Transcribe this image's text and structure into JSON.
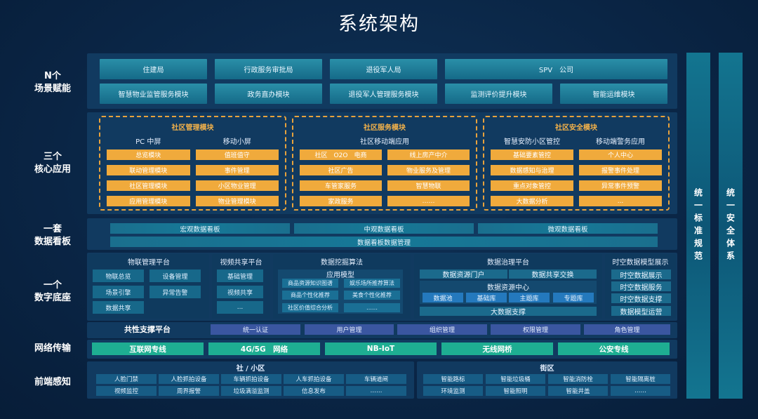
{
  "title": "系统架构",
  "left_labels": [
    "N个\n场景赋能",
    "三个\n核心应用",
    "一套\n数据看板",
    "一个\n数字底座",
    "网络传输",
    "前端感知"
  ],
  "scenario": {
    "row1": [
      "住建局",
      "行政服务审批局",
      "退役军人局",
      "SPV　公司"
    ],
    "row2": [
      "智慧物业监管服务模块",
      "政务直办模块",
      "退役军人管理服务模块",
      "监测评价提升模块",
      "智能运维模块"
    ]
  },
  "core_apps": [
    {
      "title": "社区管理模块",
      "subtitles": [
        "PC 中屏",
        "移动小屏"
      ],
      "left": [
        "总览模块",
        "联动管理模块",
        "社区管理模块",
        "应用管理模块"
      ],
      "right": [
        "值班值守",
        "事件管理",
        "小区物业管理",
        "物业管理模块"
      ]
    },
    {
      "title": "社区服务模块",
      "subtitles": [
        "社区移动端应用"
      ],
      "left": [
        "社区　O2O　电商",
        "社区广告",
        "车管家服务",
        "家政服务"
      ],
      "right": [
        "线上房产中介",
        "物业服务及管理",
        "智慧物联",
        "……"
      ]
    },
    {
      "title": "社区安全模块",
      "subtitles": [
        "智慧安防小区管控",
        "移动端警务应用"
      ],
      "left": [
        "基础要素管控",
        "数据感知与治理",
        "重点对象管控",
        "大数据分析"
      ],
      "right": [
        "个人中心",
        "报警事件处理",
        "异常事件预警",
        "..."
      ]
    }
  ],
  "dashboard": {
    "boards": [
      "宏观数据看板",
      "中观数据看板",
      "微观数据看板"
    ],
    "management": "数据看板数据管理"
  },
  "base": {
    "iot": {
      "title": "物联管理平台",
      "items": [
        "物联总览",
        "设备管理",
        "场景引擎",
        "异常告警",
        "数据共享"
      ]
    },
    "video": {
      "title": "视频共享平台",
      "items": [
        "基础管理",
        "视频共享",
        "..."
      ]
    },
    "mining": {
      "title": "数据挖掘算法",
      "model_title": "应用模型",
      "items": [
        "商品资源知识图谱",
        "娱乐场所推荐算法",
        "商品个性化推荐",
        "美食个性化推荐",
        "社区价值综合分析",
        "……"
      ]
    },
    "governance": {
      "title": "数据治理平台",
      "top": [
        "数据资源门户",
        "数据共享交换"
      ],
      "center_title": "数据资源中心",
      "center_items": [
        "数据池",
        "基础库",
        "主题库",
        "专题库"
      ],
      "bottom": "大数据支撑"
    },
    "spatial": {
      "title": "时空数据模型展示",
      "items": [
        "时空数据展示",
        "时空数据服务",
        "时空数据支撑",
        "数据模型运营"
      ]
    }
  },
  "common": {
    "title": "共性支撑平台",
    "items": [
      "统一认证",
      "用户管理",
      "组织管理",
      "权限管理",
      "角色管理"
    ]
  },
  "network": [
    "互联网专线",
    "4G/5G　网络",
    "NB-IoT",
    "无线网桥",
    "公安专线"
  ],
  "frontend": {
    "community": {
      "title": "社 / 小区",
      "items": [
        "人脸门禁",
        "人脸抓拍设备",
        "车辆抓拍设备",
        "人车抓拍设备",
        "车辆道闸",
        "视频监控",
        "周界报警",
        "垃圾满溢监测",
        "信息发布",
        "……"
      ]
    },
    "street": {
      "title": "街区",
      "items": [
        "智能路标",
        "智能垃圾桶",
        "智能消防栓",
        "智能隔离桩",
        "环境监测",
        "智能照明",
        "智能井盖",
        "……"
      ]
    }
  },
  "side_bars": [
    "统一标准规范",
    "统一安全体系"
  ],
  "colors": {
    "background": "#0a2545",
    "teal": "#1f7f98",
    "orange": "#f0aa3c",
    "green": "#1eae92",
    "purple": "#3a56a0",
    "blue": "#2479bd"
  }
}
